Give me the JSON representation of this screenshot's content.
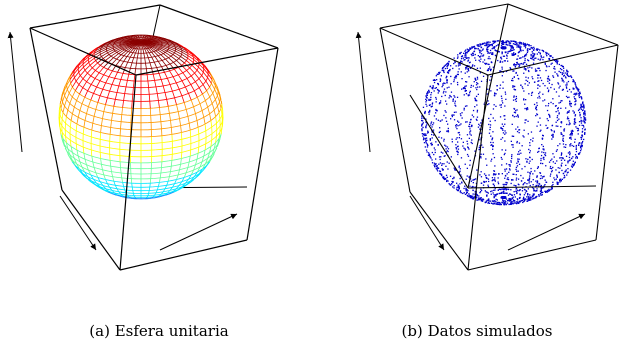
{
  "figure": {
    "panels": [
      {
        "label": "(a)",
        "caption": "Esfera unitaria",
        "content": "wireframe-sphere",
        "colormap": [
          "#8b0000",
          "#ff0000",
          "#ff9900",
          "#ffff00",
          "#66ff99",
          "#00e5ff",
          "#1e90ff"
        ]
      },
      {
        "label": "(b)",
        "caption": "Datos simulados",
        "content": "simulated-points",
        "point_color": "#0000cc"
      }
    ]
  }
}
